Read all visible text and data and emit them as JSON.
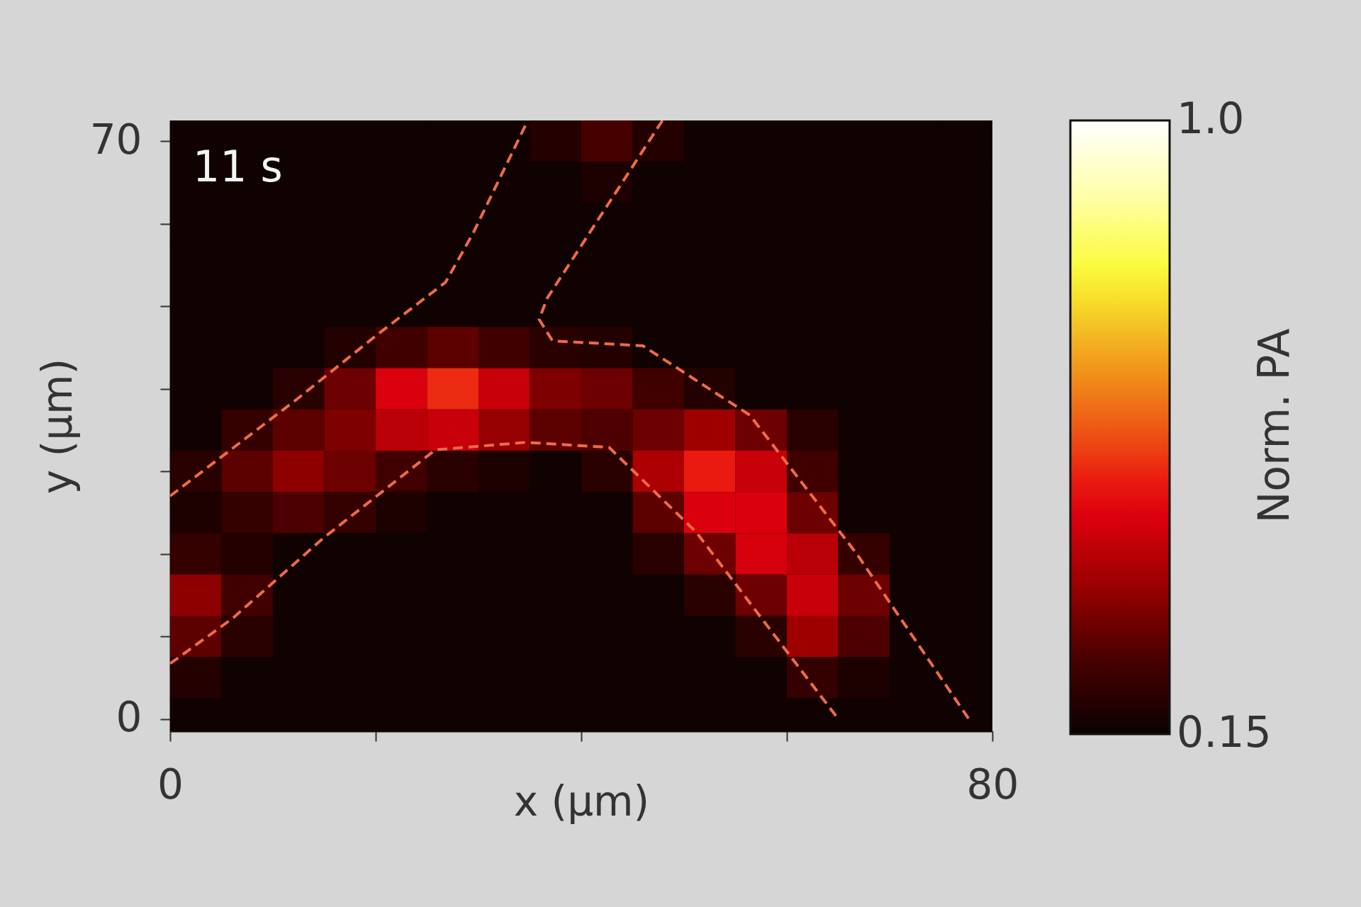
{
  "chart_data": {
    "type": "heatmap",
    "xlabel": "x (µm)",
    "ylabel": "y (µm)",
    "clabel": "Norm. PA",
    "annotations": [
      "11 s"
    ],
    "x": [
      2.5,
      7.5,
      12.5,
      17.5,
      22.5,
      27.5,
      32.5,
      37.5,
      42.5,
      47.5,
      52.5,
      57.5,
      62.5,
      67.5,
      72.5,
      77.5
    ],
    "y": [
      70,
      65,
      60,
      55,
      50,
      45,
      40,
      35,
      30,
      25,
      20,
      15,
      10,
      5,
      0
    ],
    "cells": [
      [
        0.16,
        0.16,
        0.16,
        0.16,
        0.16,
        0.16,
        0.16,
        0.19,
        0.25,
        0.19,
        0.16,
        0.16,
        0.16,
        0.16,
        0.16,
        0.16
      ],
      [
        0.16,
        0.16,
        0.16,
        0.16,
        0.16,
        0.16,
        0.16,
        0.16,
        0.18,
        0.16,
        0.16,
        0.16,
        0.16,
        0.16,
        0.16,
        0.16
      ],
      [
        0.16,
        0.16,
        0.16,
        0.16,
        0.16,
        0.16,
        0.16,
        0.16,
        0.16,
        0.16,
        0.16,
        0.16,
        0.16,
        0.16,
        0.16,
        0.16
      ],
      [
        0.16,
        0.16,
        0.16,
        0.16,
        0.16,
        0.16,
        0.16,
        0.16,
        0.16,
        0.16,
        0.16,
        0.16,
        0.16,
        0.16,
        0.16,
        0.16
      ],
      [
        0.16,
        0.16,
        0.16,
        0.16,
        0.16,
        0.16,
        0.16,
        0.16,
        0.16,
        0.16,
        0.16,
        0.16,
        0.16,
        0.16,
        0.16,
        0.16
      ],
      [
        0.16,
        0.16,
        0.16,
        0.19,
        0.24,
        0.28,
        0.24,
        0.2,
        0.19,
        0.16,
        0.16,
        0.16,
        0.16,
        0.16,
        0.16,
        0.16
      ],
      [
        0.16,
        0.16,
        0.2,
        0.3,
        0.45,
        0.52,
        0.42,
        0.32,
        0.3,
        0.24,
        0.19,
        0.16,
        0.16,
        0.16,
        0.16,
        0.16
      ],
      [
        0.16,
        0.22,
        0.28,
        0.32,
        0.4,
        0.42,
        0.35,
        0.28,
        0.26,
        0.3,
        0.36,
        0.3,
        0.2,
        0.16,
        0.16,
        0.16
      ],
      [
        0.2,
        0.28,
        0.34,
        0.3,
        0.24,
        0.2,
        0.18,
        0.16,
        0.2,
        0.38,
        0.5,
        0.42,
        0.24,
        0.16,
        0.16,
        0.16
      ],
      [
        0.18,
        0.22,
        0.26,
        0.22,
        0.18,
        0.16,
        0.16,
        0.16,
        0.16,
        0.28,
        0.45,
        0.45,
        0.3,
        0.16,
        0.16,
        0.16
      ],
      [
        0.22,
        0.19,
        0.16,
        0.16,
        0.16,
        0.16,
        0.16,
        0.16,
        0.16,
        0.2,
        0.3,
        0.44,
        0.4,
        0.22,
        0.16,
        0.16
      ],
      [
        0.34,
        0.24,
        0.16,
        0.16,
        0.16,
        0.16,
        0.16,
        0.16,
        0.16,
        0.16,
        0.2,
        0.3,
        0.42,
        0.3,
        0.16,
        0.16
      ],
      [
        0.28,
        0.2,
        0.16,
        0.16,
        0.16,
        0.16,
        0.16,
        0.16,
        0.16,
        0.16,
        0.16,
        0.2,
        0.36,
        0.26,
        0.16,
        0.16
      ],
      [
        0.19,
        0.16,
        0.16,
        0.16,
        0.16,
        0.16,
        0.16,
        0.16,
        0.16,
        0.16,
        0.16,
        0.16,
        0.22,
        0.18,
        0.16,
        0.16
      ],
      [
        0.16,
        0.16,
        0.16,
        0.16,
        0.16,
        0.16,
        0.16,
        0.16,
        0.16,
        0.16,
        0.16,
        0.16,
        0.16,
        0.16,
        0.16,
        0.16
      ]
    ],
    "clim": [
      0.15,
      1.0
    ],
    "cticks": [
      0.15,
      {
        "value": 1,
        "label": "1.0"
      }
    ],
    "xlim": [
      0,
      80
    ],
    "xticks": [
      0,
      {
        "value": 20,
        "label": null
      },
      {
        "value": 40,
        "label": null
      },
      {
        "value": 60,
        "label": null
      },
      80
    ],
    "ylim": [
      -1.5,
      72.5
    ],
    "yticks": [
      0,
      {
        "value": 10,
        "label": null
      },
      {
        "value": 20,
        "label": null
      },
      {
        "value": 30,
        "label": null
      },
      {
        "value": 40,
        "label": null
      },
      {
        "value": 50,
        "label": null
      },
      {
        "value": 60,
        "label": null
      },
      70
    ],
    "line_style": "dashed",
    "series": [
      {
        "type": "line",
        "color": "#f06a46",
        "x": [
          0,
          12.3,
          20.1,
          26.8,
          29.5,
          34.8
        ],
        "values": [
          27,
          38.7,
          46.5,
          52.9,
          58.9,
          72.5
        ]
      },
      {
        "type": "line",
        "color": "#f06a46",
        "x": [
          0,
          6.1,
          14.9,
          25.8,
          34.6,
          42.7,
          51.2,
          57.9,
          65
        ],
        "values": [
          6.7,
          12.2,
          21.9,
          32.6,
          33.5,
          32.9,
          22.6,
          11.6,
          0
        ]
      },
      {
        "type": "line",
        "color": "#f06a46",
        "x": [
          47.9,
          36.7,
          35.9,
          37.2,
          46.0,
          56.4,
          66.8,
          77.7
        ],
        "values": [
          72.5,
          51.0,
          48.4,
          45.8,
          45.2,
          36.8,
          20.0,
          0
        ]
      }
    ]
  }
}
